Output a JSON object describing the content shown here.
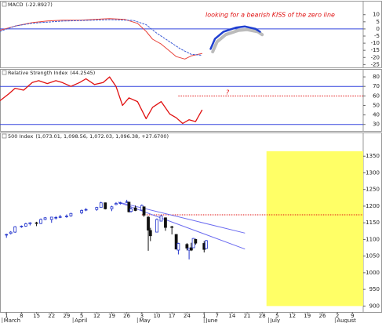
{
  "chart_data": [
    {
      "type": "line",
      "title": "MACD",
      "title_value": "(-22.8927)",
      "annotation": "looking for a bearish KISS of the zero line",
      "xlim": [
        -3,
        166
      ],
      "ylim": [
        -27,
        17
      ],
      "yticks": [
        10,
        5,
        0,
        -5,
        -10,
        -15,
        -20,
        -25
      ],
      "hlines": [
        {
          "value": 0,
          "color": "#3344dd"
        }
      ],
      "series": [
        {
          "color": "#bbbbbb",
          "width": 4,
          "x": [
            96,
            98,
            102,
            108,
            112,
            117,
            119
          ],
          "values": [
            -16,
            -9,
            -4,
            -1,
            -0.5,
            -2,
            -4
          ]
        },
        {
          "color": "#1f3fd0",
          "width": 2.5,
          "x": [
            95,
            97,
            101,
            107,
            111,
            116,
            118
          ],
          "values": [
            -14,
            -7,
            -2,
            1,
            1.7,
            0,
            -2
          ]
        },
        {
          "color": "#e8423a",
          "width": 1,
          "x": [
            -3,
            4,
            12,
            19,
            26,
            34,
            41,
            48,
            55,
            61,
            65,
            68,
            72,
            76,
            79,
            83,
            86,
            91
          ],
          "values": [
            -1,
            2,
            4.4,
            5.6,
            6.1,
            6.1,
            6.7,
            7.2,
            6.7,
            3.9,
            -1.7,
            -7.2,
            -10.6,
            -15.6,
            -19.4,
            -21.1,
            -18.9,
            -17.2
          ]
        },
        {
          "color": "#3b5bd6",
          "width": 1,
          "dash": true,
          "x": [
            -3,
            4,
            12,
            26,
            48,
            59,
            65,
            70,
            76,
            81,
            86,
            91
          ],
          "values": [
            -1.7,
            2,
            4,
            5.5,
            6.5,
            6,
            3,
            -3,
            -9,
            -14,
            -17.8,
            -18.5
          ]
        }
      ]
    },
    {
      "type": "line",
      "title": "Relative Strength Index",
      "title_value": "(44.2545)",
      "annotation": "?",
      "xlim": [
        -3,
        166
      ],
      "ylim": [
        24,
        85
      ],
      "yticks": [
        80,
        70,
        60,
        50,
        40,
        30
      ],
      "hlines": [
        {
          "value": 70,
          "color": "#3344dd"
        },
        {
          "value": 30,
          "color": "#3344dd"
        }
      ],
      "ref_line": {
        "value": 60,
        "from": 80,
        "color": "#e01010"
      },
      "series": [
        {
          "color": "#e01010",
          "width": 1.3,
          "x": [
            -3,
            1,
            4,
            8,
            12,
            15,
            19,
            23,
            26,
            30,
            34,
            37,
            41,
            45,
            48,
            51,
            54,
            57,
            61,
            65,
            68,
            72,
            76,
            79,
            82,
            85,
            88,
            91
          ],
          "values": [
            55,
            62,
            68,
            66,
            74,
            76,
            73,
            76,
            74,
            70,
            74,
            78,
            72,
            74,
            80,
            70,
            50,
            58,
            54,
            36,
            48,
            54,
            41,
            37,
            31,
            35,
            33,
            45
          ]
        }
      ]
    },
    {
      "type": "candlestick",
      "title": "500 Index",
      "title_value": "(1,073.01, 1,098.56, 1,072.03, 1,096.38, +27.6700)",
      "xlim": [
        -3,
        166
      ],
      "ylim": [
        882,
        1400
      ],
      "yticks": [
        900,
        950,
        1000,
        1050,
        1100,
        1150,
        1200,
        1250,
        1300,
        1350
      ],
      "highlight": {
        "x": [
          121,
          166
        ],
        "y": [
          900,
          1365
        ],
        "color": "#ffff66"
      },
      "ref_line": {
        "value": 1174,
        "from": 63,
        "color": "#e01010"
      },
      "trendlines": [
        {
          "color": "#6a6af0",
          "x": [
            52,
            111
          ],
          "values": [
            1212,
            1119
          ]
        },
        {
          "color": "#6a6af0",
          "x": [
            52,
            111
          ],
          "values": [
            1212,
            1071
          ]
        }
      ],
      "up_color": "#2233cc",
      "down_color": "#111111",
      "x": [
        0,
        2,
        4,
        7,
        9,
        11,
        14,
        16,
        18,
        21,
        23,
        25,
        28,
        30,
        35,
        37,
        42,
        44,
        46,
        49,
        51,
        53,
        56,
        57,
        58,
        60,
        63,
        64,
        66,
        67,
        70,
        72,
        74,
        77,
        79,
        80,
        84,
        85,
        86,
        87,
        88,
        92,
        93
      ],
      "open": [
        1113,
        1118,
        1122,
        1138,
        1140,
        1147,
        1150,
        1148,
        1160,
        1160,
        1165,
        1167,
        1168,
        1171,
        1180,
        1188,
        1190,
        1196,
        1210,
        1192,
        1205,
        1208,
        1212,
        1212,
        1184,
        1195,
        1188,
        1198,
        1167,
        1127,
        1122,
        1155,
        1165,
        1138,
        1115,
        1068,
        1085,
        1068,
        1075,
        1075,
        1100,
        1088,
        1073.01
      ],
      "high": [
        1117,
        1125,
        1140,
        1142,
        1150,
        1152,
        1153,
        1163,
        1167,
        1168,
        1170,
        1174,
        1175,
        1180,
        1190,
        1194,
        1198,
        1213,
        1211,
        1201,
        1212,
        1213,
        1219,
        1213,
        1196,
        1202,
        1205,
        1198,
        1170,
        1135,
        1163,
        1173,
        1166,
        1141,
        1116,
        1090,
        1089,
        1075,
        1090,
        1104,
        1102,
        1095,
        1098.56
      ],
      "low": [
        1105,
        1115,
        1120,
        1135,
        1138,
        1142,
        1140,
        1146,
        1158,
        1150,
        1160,
        1164,
        1165,
        1168,
        1176,
        1185,
        1186,
        1195,
        1190,
        1185,
        1203,
        1205,
        1210,
        1181,
        1181,
        1185,
        1188,
        1168,
        1066,
        1095,
        1122,
        1155,
        1126,
        1115,
        1071,
        1055,
        1067,
        1040,
        1065,
        1075,
        1084,
        1061,
        1072.03
      ],
      "close": [
        1115,
        1122,
        1138,
        1140,
        1147,
        1150,
        1148,
        1160,
        1165,
        1167,
        1166,
        1168,
        1170,
        1178,
        1187,
        1190,
        1196,
        1210,
        1192,
        1198,
        1208,
        1210,
        1213,
        1183,
        1192,
        1187,
        1202,
        1173,
        1128,
        1111,
        1160,
        1171,
        1136,
        1137,
        1071,
        1088,
        1074,
        1074,
        1068,
        1103,
        1089,
        1070,
        1096.38
      ],
      "xticks": [
        {
          "value": 0,
          "label": "1"
        },
        {
          "value": 7,
          "label": "8"
        },
        {
          "value": 14,
          "label": "15"
        },
        {
          "value": 21,
          "label": "22"
        },
        {
          "value": 28,
          "label": "29"
        },
        {
          "value": 35,
          "label": "5"
        },
        {
          "value": 42,
          "label": "12"
        },
        {
          "value": 49,
          "label": "19"
        },
        {
          "value": 56,
          "label": "26"
        },
        {
          "value": 63,
          "label": "3"
        },
        {
          "value": 70,
          "label": "10"
        },
        {
          "value": 77,
          "label": "17"
        },
        {
          "value": 84,
          "label": "24"
        },
        {
          "value": 92,
          "label": "1"
        },
        {
          "value": 98,
          "label": "7"
        },
        {
          "value": 105,
          "label": "14"
        },
        {
          "value": 112,
          "label": "21"
        },
        {
          "value": 119,
          "label": "28"
        },
        {
          "value": 126,
          "label": "5"
        },
        {
          "value": 133,
          "label": "12"
        },
        {
          "value": 140,
          "label": "19"
        },
        {
          "value": 147,
          "label": "26"
        },
        {
          "value": 154,
          "label": "2"
        },
        {
          "value": 161,
          "label": "9"
        }
      ],
      "month_ticks": [
        {
          "value": -2,
          "label": "March"
        },
        {
          "value": 31,
          "label": "April"
        },
        {
          "value": 61,
          "label": "May"
        },
        {
          "value": 92,
          "label": "June"
        },
        {
          "value": 122,
          "label": "July"
        },
        {
          "value": 153,
          "label": "August"
        }
      ]
    }
  ]
}
